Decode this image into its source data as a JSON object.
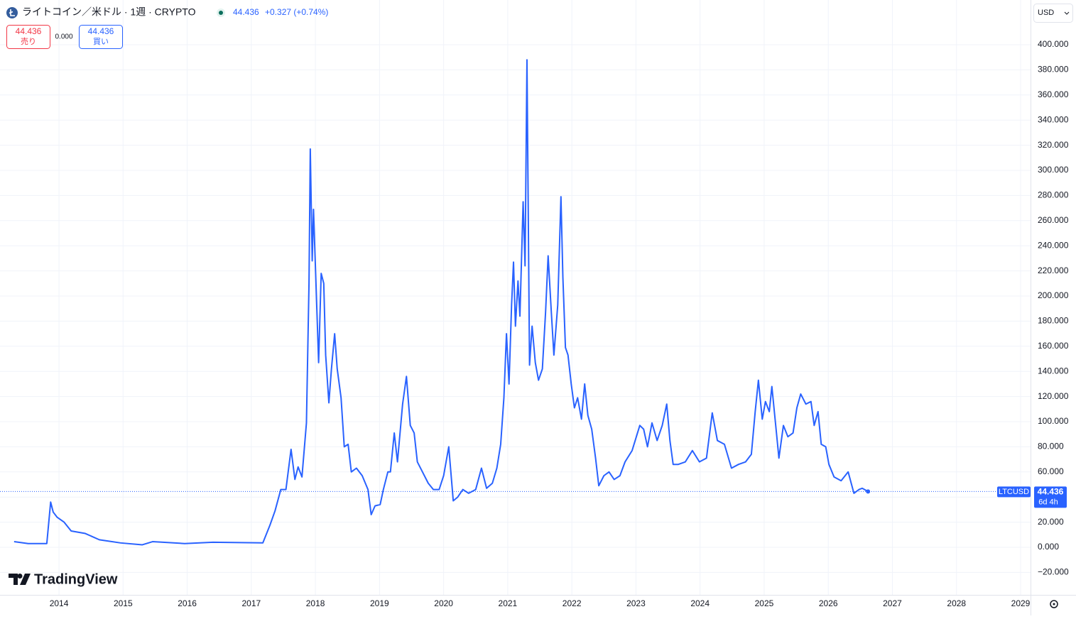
{
  "chart_data": {
    "type": "line",
    "title": "ライトコイン／米ドル · 1週 · CRYPTO",
    "last_price": 44.436,
    "change": "+0.327 (+0.74%)",
    "bid": 44.436,
    "bid_label": "売り",
    "spread": "0.000",
    "ask": 44.436,
    "ask_label": "買い",
    "currency": "USD",
    "countdown": "6d 4h",
    "brand": "TradingView",
    "grid": true,
    "x": [
      2013.3,
      2013.52,
      2013.81,
      2013.87,
      2013.91,
      2013.97,
      2014.08,
      2014.19,
      2014.41,
      2014.63,
      2014.96,
      2015.3,
      2015.46,
      2015.96,
      2016.4,
      2017.18,
      2017.29,
      2017.37,
      2017.46,
      2017.54,
      2017.62,
      2017.68,
      2017.73,
      2017.79,
      2017.86,
      2017.9,
      2017.92,
      2017.95,
      2017.97,
      2018.02,
      2018.05,
      2018.09,
      2018.13,
      2018.16,
      2018.21,
      2018.25,
      2018.3,
      2018.34,
      2018.4,
      2018.45,
      2018.51,
      2018.56,
      2018.64,
      2018.73,
      2018.82,
      2018.87,
      2018.93,
      2019.01,
      2019.06,
      2019.13,
      2019.17,
      2019.23,
      2019.28,
      2019.36,
      2019.42,
      2019.48,
      2019.54,
      2019.59,
      2019.67,
      2019.76,
      2019.84,
      2019.93,
      2020.0,
      2020.08,
      2020.15,
      2020.22,
      2020.3,
      2020.39,
      2020.5,
      2020.59,
      2020.67,
      2020.76,
      2020.83,
      2020.89,
      2020.94,
      2020.98,
      2021.02,
      2021.06,
      2021.09,
      2021.12,
      2021.16,
      2021.19,
      2021.24,
      2021.27,
      2021.3,
      2021.34,
      2021.38,
      2021.43,
      2021.48,
      2021.54,
      2021.59,
      2021.63,
      2021.68,
      2021.72,
      2021.78,
      2021.83,
      2021.86,
      2021.9,
      2021.94,
      2021.99,
      2022.04,
      2022.09,
      2022.15,
      2022.2,
      2022.25,
      2022.31,
      2022.37,
      2022.42,
      2022.5,
      2022.58,
      2022.66,
      2022.75,
      2022.83,
      2022.94,
      2023.06,
      2023.12,
      2023.18,
      2023.25,
      2023.33,
      2023.41,
      2023.48,
      2023.53,
      2023.58,
      2023.66,
      2023.77,
      2023.88,
      2023.99,
      2024.1,
      2024.19,
      2024.27,
      2024.38,
      2024.49,
      2024.6,
      2024.71,
      2024.8,
      2024.86,
      2024.91,
      2024.97,
      2025.02,
      2025.08,
      2025.12,
      2025.18,
      2025.23,
      2025.3,
      2025.37,
      2025.45,
      2025.51,
      2025.57,
      2025.65,
      2025.73,
      2025.78,
      2025.84,
      2025.89,
      2025.96,
      2026.01,
      2026.09,
      2026.2,
      2026.31,
      2026.4,
      2026.48,
      2026.53,
      2026.62
    ],
    "series": [
      {
        "name": "LTCUSD",
        "color": "#2962ff",
        "values": [
          4.5,
          3,
          3,
          36,
          28,
          24,
          20,
          13,
          11,
          6,
          3.5,
          2,
          4.5,
          3,
          4,
          3.5,
          17.5,
          29,
          46,
          46,
          78,
          54,
          64,
          56,
          99,
          210,
          317,
          228,
          269,
          193,
          147,
          218,
          210,
          153,
          115,
          142,
          170,
          142,
          119,
          80,
          82,
          60,
          63,
          57,
          46,
          26,
          33,
          34,
          46,
          60,
          60,
          91,
          68,
          114,
          136,
          97,
          91,
          68,
          60,
          51,
          46,
          46,
          57,
          80,
          37,
          40,
          46,
          43,
          46,
          63,
          47,
          51,
          63,
          82,
          119,
          170,
          130,
          193,
          227,
          176,
          212,
          184,
          275,
          224,
          388,
          145,
          176,
          147,
          133,
          142,
          187,
          232,
          187,
          153,
          193,
          279,
          215,
          159,
          153,
          130,
          111,
          119,
          102,
          130,
          105,
          94,
          71,
          49,
          57,
          60,
          54,
          57,
          68,
          77,
          97,
          94,
          80,
          99,
          85,
          97,
          114,
          85,
          66,
          66,
          68,
          77,
          68,
          71,
          107,
          85,
          82,
          63,
          66,
          68,
          74,
          108,
          133,
          102,
          116,
          108,
          128,
          97,
          71,
          97,
          88,
          91,
          111,
          122,
          114,
          116,
          97,
          108,
          82,
          80,
          66,
          56,
          53,
          60,
          43,
          46,
          47,
          44.436
        ]
      }
    ],
    "xlim": [
      2013.08,
      2029.155
    ],
    "xticks": [
      2014,
      2015,
      2016,
      2017,
      2018,
      2019,
      2020,
      2021,
      2022,
      2023,
      2024,
      2025,
      2026,
      2027,
      2028,
      2029
    ],
    "ylim": [
      -37.85,
      435.6
    ],
    "yticks": [
      {
        "value": -20,
        "label": "−20.000"
      },
      {
        "value": 0,
        "label": "0.000"
      },
      {
        "value": 20,
        "label": "20.000"
      },
      {
        "value": 40,
        "label": "40.000"
      },
      {
        "value": 60,
        "label": "60.000"
      },
      {
        "value": 80,
        "label": "80.000"
      },
      {
        "value": 100,
        "label": "100.000"
      },
      {
        "value": 120,
        "label": "120.000"
      },
      {
        "value": 140,
        "label": "140.000"
      },
      {
        "value": 160,
        "label": "160.000"
      },
      {
        "value": 180,
        "label": "180.000"
      },
      {
        "value": 200,
        "label": "200.000"
      },
      {
        "value": 220,
        "label": "220.000"
      },
      {
        "value": 240,
        "label": "240.000"
      },
      {
        "value": 260,
        "label": "260.000"
      },
      {
        "value": 280,
        "label": "280.000"
      },
      {
        "value": 300,
        "label": "300.000"
      },
      {
        "value": 320,
        "label": "320.000"
      },
      {
        "value": 340,
        "label": "340.000"
      },
      {
        "value": 360,
        "label": "360.000"
      },
      {
        "value": 380,
        "label": "380.000"
      },
      {
        "value": 400,
        "label": "400.000"
      }
    ]
  }
}
